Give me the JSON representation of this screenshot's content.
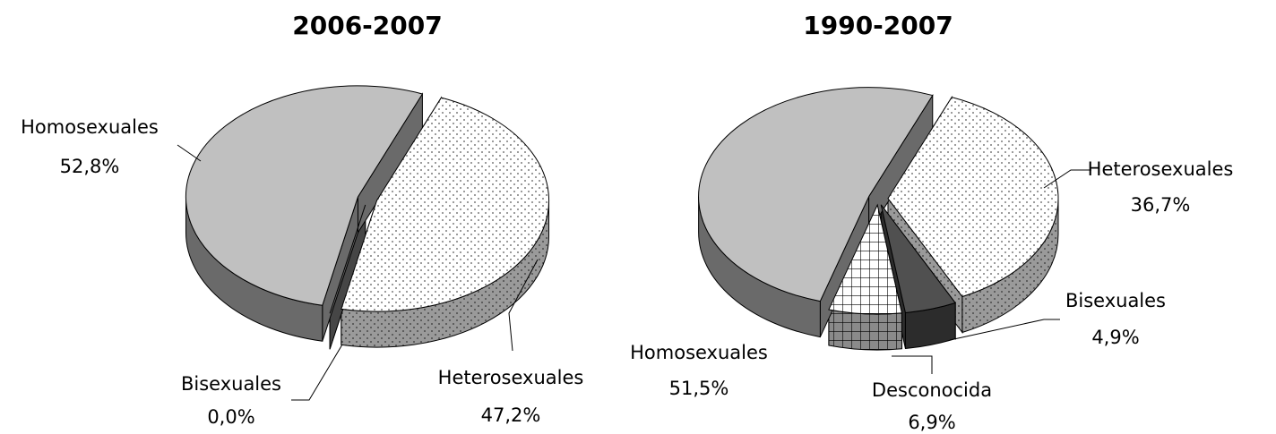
{
  "chart_data": [
    {
      "type": "pie",
      "title": "2006-2007",
      "categories": [
        "Heterosexuales",
        "Bisexuales",
        "Homosexuales"
      ],
      "values": [
        47.2,
        0.0,
        52.8
      ],
      "value_labels": [
        "47,2%",
        "0,0%",
        "52,8%"
      ],
      "fills": [
        "dots",
        "#808080",
        "#c0c0c0"
      ]
    },
    {
      "type": "pie",
      "title": "1990-2007",
      "categories": [
        "Heterosexuales",
        "Bisexuales",
        "Desconocida",
        "Homosexuales"
      ],
      "values": [
        36.7,
        4.9,
        6.9,
        51.5
      ],
      "value_labels": [
        "36,7%",
        "4,9%",
        "6,9%",
        "51,5%"
      ],
      "fills": [
        "dots",
        "#505050",
        "grid",
        "#c0c0c0"
      ]
    }
  ]
}
